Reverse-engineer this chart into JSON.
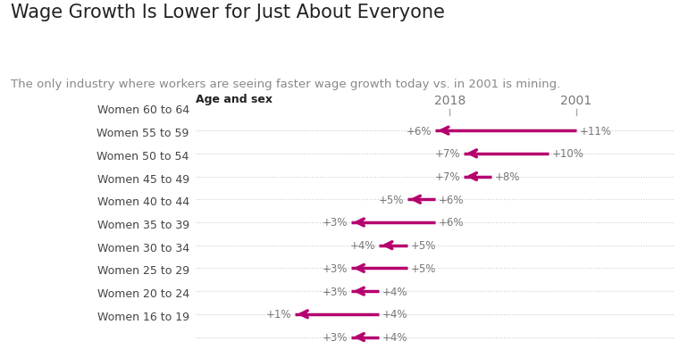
{
  "title": "Wage Growth Is Lower for Just About Everyone",
  "subtitle": "The only industry where workers are seeing faster wage growth today vs. in 2001 is mining.",
  "col_label_left": "Age and sex",
  "col_header_2018": "2018",
  "col_header_2001": "2001",
  "categories": [
    "Women 16 to 19",
    "Women 20 to 24",
    "Women 25 to 29",
    "Women 30 to 34",
    "Women 35 to 39",
    "Women 40 to 44",
    "Women 45 to 49",
    "Women 50 to 54",
    "Women 55 to 59",
    "Women 60 to 64"
  ],
  "values_2018": [
    6,
    7,
    7,
    5,
    3,
    4,
    3,
    3,
    1,
    3
  ],
  "values_2001": [
    11,
    10,
    8,
    6,
    6,
    5,
    5,
    4,
    4,
    4
  ],
  "arrow_color": "#b5006e",
  "title_fontsize": 15,
  "subtitle_fontsize": 9.5,
  "label_fontsize": 9,
  "value_fontsize": 8.5,
  "header_fontsize": 10,
  "bg_color": "#ffffff",
  "text_color": "#777777",
  "cat_color": "#444444",
  "header_color": "#777777",
  "tick_color": "#aaaaaa",
  "dot_color": "#cccccc",
  "bold_label_color": "#222222",
  "col_2018_val": 6.5,
  "col_2001_val": 11.0,
  "xlim_left": -2.5,
  "xlim_right": 14.5,
  "ylim_bottom": 9.6,
  "ylim_top": -1.5
}
